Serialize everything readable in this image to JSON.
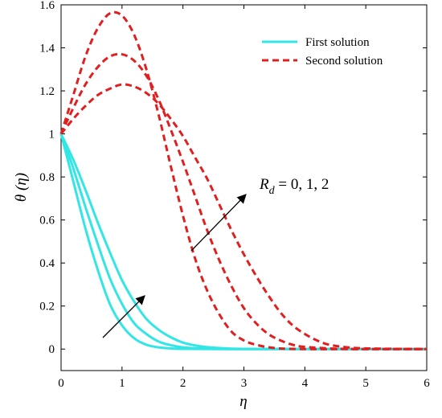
{
  "chart_data": {
    "type": "line",
    "xlabel": "η",
    "ylabel": "θ (η)",
    "xlim": [
      0,
      6
    ],
    "ylim": [
      -0.1,
      1.6
    ],
    "xticks": [
      0,
      1,
      2,
      3,
      4,
      5,
      6
    ],
    "xtick_labels": [
      "0",
      "1",
      "2",
      "3",
      "4",
      "5",
      "6"
    ],
    "yticks": [
      0,
      0.2,
      0.4,
      0.6,
      0.8,
      1,
      1.2,
      1.4,
      1.6
    ],
    "ytick_labels": [
      "0",
      "0.2",
      "0.4",
      "0.6",
      "0.8",
      "1",
      "1.2",
      "1.4",
      "1.6"
    ],
    "grid": false,
    "legend_position": "top-right",
    "legend": [
      {
        "label": "First solution",
        "style": "solid",
        "color": "#33e6e6"
      },
      {
        "label": "Second solution",
        "style": "dashed",
        "color": "#e02020"
      }
    ],
    "annotation": {
      "text_main": "R",
      "text_sub": "d",
      "text_rest": " = 0, 1, 2"
    },
    "series": [
      {
        "group": "First solution",
        "x": [
          0,
          0.2,
          0.4,
          0.6,
          0.8,
          1.0,
          1.2,
          1.4,
          1.6,
          1.8,
          2.0,
          2.5,
          3.0,
          4.0,
          5.0,
          6.0
        ],
        "y": [
          1.0,
          0.78,
          0.56,
          0.37,
          0.21,
          0.11,
          0.05,
          0.02,
          0.008,
          0.003,
          0.001,
          0,
          0,
          0,
          0,
          0
        ]
      },
      {
        "group": "First solution",
        "x": [
          0,
          0.2,
          0.4,
          0.6,
          0.8,
          1.0,
          1.2,
          1.4,
          1.6,
          1.8,
          2.0,
          2.2,
          2.5,
          3.0,
          4.0,
          5.0,
          6.0
        ],
        "y": [
          1.0,
          0.84,
          0.66,
          0.49,
          0.33,
          0.21,
          0.12,
          0.07,
          0.035,
          0.018,
          0.008,
          0.004,
          0.001,
          0,
          0,
          0,
          0
        ]
      },
      {
        "group": "First solution",
        "x": [
          0,
          0.2,
          0.4,
          0.6,
          0.8,
          1.0,
          1.2,
          1.4,
          1.6,
          1.8,
          2.0,
          2.2,
          2.4,
          2.7,
          3.0,
          4.0,
          5.0,
          6.0
        ],
        "y": [
          1.0,
          0.88,
          0.74,
          0.59,
          0.45,
          0.32,
          0.22,
          0.14,
          0.09,
          0.055,
          0.03,
          0.017,
          0.009,
          0.003,
          0.001,
          0,
          0,
          0
        ]
      },
      {
        "group": "Second solution",
        "x": [
          0,
          0.2,
          0.4,
          0.6,
          0.8,
          1.0,
          1.2,
          1.4,
          1.6,
          1.8,
          2.0,
          2.2,
          2.4,
          2.6,
          2.8,
          3.0,
          3.2,
          3.5,
          4.0,
          5.0,
          6.0
        ],
        "y": [
          1.0,
          1.18,
          1.36,
          1.49,
          1.56,
          1.55,
          1.46,
          1.3,
          1.09,
          0.85,
          0.62,
          0.42,
          0.27,
          0.16,
          0.08,
          0.04,
          0.02,
          0.005,
          0,
          0,
          0
        ]
      },
      {
        "group": "Second solution",
        "x": [
          0,
          0.2,
          0.4,
          0.6,
          0.8,
          1.0,
          1.2,
          1.4,
          1.6,
          1.8,
          2.0,
          2.2,
          2.4,
          2.6,
          2.8,
          3.0,
          3.2,
          3.4,
          3.6,
          3.8,
          4.0,
          4.5,
          5.0,
          6.0
        ],
        "y": [
          1.0,
          1.12,
          1.23,
          1.31,
          1.36,
          1.37,
          1.34,
          1.27,
          1.16,
          1.02,
          0.87,
          0.71,
          0.55,
          0.41,
          0.29,
          0.19,
          0.12,
          0.07,
          0.04,
          0.02,
          0.01,
          0.002,
          0,
          0
        ]
      },
      {
        "group": "Second solution",
        "x": [
          0,
          0.2,
          0.4,
          0.6,
          0.8,
          1.0,
          1.2,
          1.4,
          1.6,
          1.8,
          2.0,
          2.2,
          2.4,
          2.6,
          2.8,
          3.0,
          3.2,
          3.4,
          3.6,
          3.8,
          4.0,
          4.2,
          4.4,
          4.7,
          5.0,
          5.5,
          6.0
        ],
        "y": [
          1.0,
          1.07,
          1.13,
          1.18,
          1.21,
          1.23,
          1.22,
          1.19,
          1.14,
          1.07,
          0.99,
          0.89,
          0.79,
          0.67,
          0.55,
          0.44,
          0.34,
          0.25,
          0.17,
          0.11,
          0.07,
          0.04,
          0.02,
          0.008,
          0.003,
          0.001,
          0
        ]
      }
    ]
  }
}
